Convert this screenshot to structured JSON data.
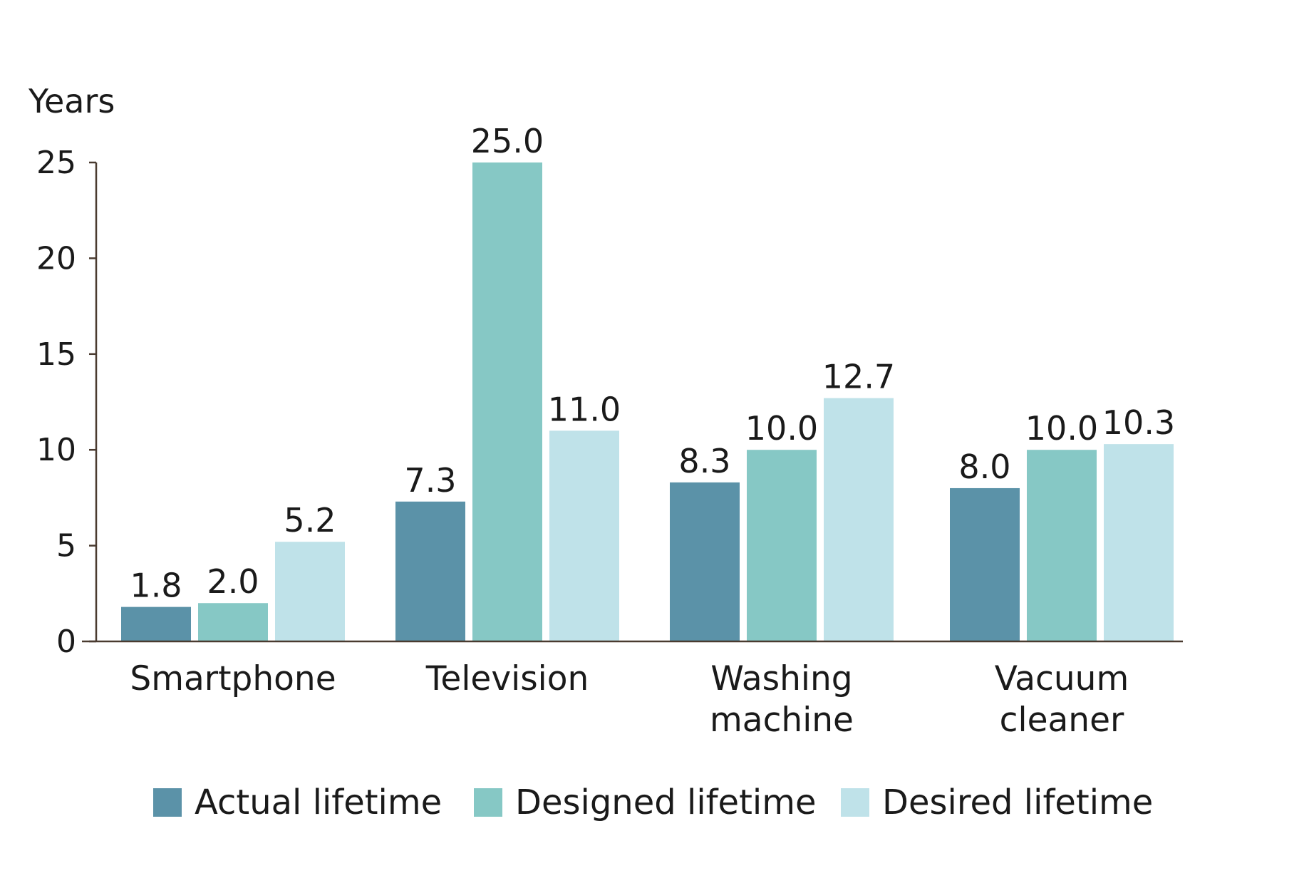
{
  "chart_data": {
    "type": "bar",
    "ylabel": "Years",
    "ylim": [
      0,
      25
    ],
    "yticks": [
      "0",
      "5",
      "10",
      "15",
      "20",
      "25"
    ],
    "categories": [
      [
        "Smartphone"
      ],
      [
        "Television"
      ],
      [
        "Washing",
        "machine"
      ],
      [
        "Vacuum",
        "cleaner"
      ]
    ],
    "series": [
      {
        "name": "Actual lifetime",
        "color": "#5b92a8",
        "values": [
          1.8,
          7.3,
          8.3,
          8.0
        ],
        "labels": [
          "1.8",
          "7.3",
          "8.3",
          "8.0"
        ]
      },
      {
        "name": "Designed lifetime",
        "color": "#86c8c5",
        "values": [
          2.0,
          25.0,
          10.0,
          10.0
        ],
        "labels": [
          "2.0",
          "25.0",
          "10.0",
          "10.0"
        ]
      },
      {
        "name": "Desired lifetime",
        "color": "#bfe2e9",
        "values": [
          5.2,
          11.0,
          12.7,
          10.3
        ],
        "labels": [
          "5.2",
          "11.0",
          "12.7",
          "10.3"
        ]
      }
    ],
    "grid": false,
    "legend": "bottom"
  }
}
